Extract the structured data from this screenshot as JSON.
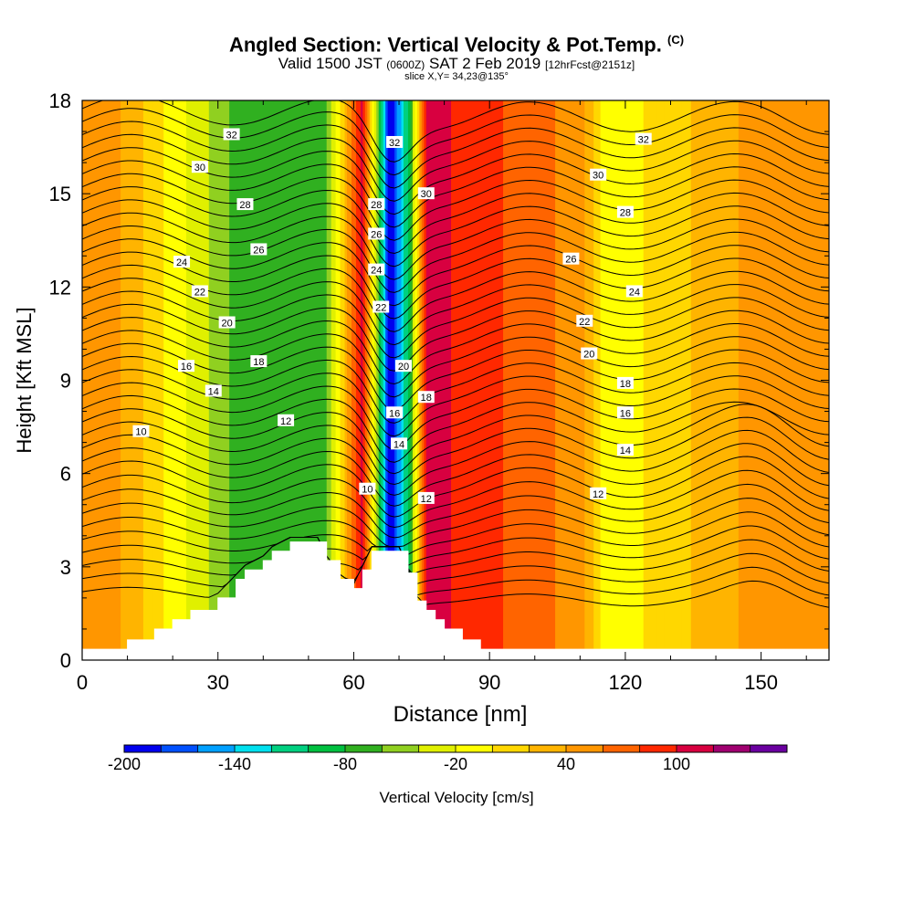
{
  "header": {
    "title_main": "Angled Section: Vertical Velocity & Pot.Temp.",
    "title_c": "(C)",
    "valid_a": "Valid 1500 JST",
    "valid_b": "(0600Z)",
    "valid_c": "SAT 2 Feb 2019",
    "valid_d": "[12hrFcst@2151z]",
    "slice": "slice X,Y= 34,23@135°"
  },
  "colorbar": {
    "title": "Vertical Velocity [cm/s]",
    "tick_labels": [
      "-200",
      "-140",
      "-80",
      "-20",
      "40",
      "100"
    ],
    "tick_values": [
      -200,
      -140,
      -80,
      -20,
      40,
      100
    ],
    "levels": [
      -200,
      -180,
      -160,
      -140,
      -120,
      -100,
      -80,
      -60,
      -40,
      -20,
      0,
      20,
      40,
      60,
      80,
      100,
      120,
      140
    ],
    "colors": [
      "#0000ee",
      "#0050ff",
      "#00a0ff",
      "#00e0ee",
      "#00d080",
      "#00c040",
      "#30b020",
      "#90d020",
      "#e0f000",
      "#ffff00",
      "#ffd700",
      "#ffb400",
      "#ff9600",
      "#ff6400",
      "#ff2800",
      "#d80040",
      "#a00070",
      "#6a00a0"
    ]
  },
  "chart_data": {
    "type": "heatmap",
    "title": "Angled Section: Vertical Velocity & Pot.Temp.",
    "xlabel": "Distance [nm]",
    "ylabel": "Height [Kft MSL]",
    "xlim": [
      0,
      165
    ],
    "ylim": [
      0,
      18
    ],
    "xticks": [
      0,
      30,
      60,
      90,
      120,
      150
    ],
    "yticks": [
      0,
      3,
      6,
      9,
      12,
      15,
      18
    ],
    "grid": false,
    "terrain": {
      "x": [
        0,
        10,
        16,
        20,
        24,
        30,
        34,
        36,
        40,
        42,
        46,
        52,
        54,
        57,
        60,
        62,
        64,
        70,
        72,
        74,
        76,
        78,
        80,
        84,
        88,
        90,
        165
      ],
      "height": [
        0.35,
        0.65,
        1.0,
        1.3,
        1.6,
        2.0,
        2.6,
        2.9,
        3.2,
        3.5,
        3.8,
        3.8,
        3.2,
        2.6,
        2.3,
        2.9,
        3.5,
        3.5,
        2.8,
        1.9,
        1.6,
        1.3,
        1.0,
        0.65,
        0.35,
        0.35,
        0.35
      ]
    },
    "vertical_velocity_cm_s": [
      {
        "x": 6,
        "value": 50
      },
      {
        "x": 35,
        "value": -70
      },
      {
        "x": 54,
        "value": -60
      },
      {
        "x": 62,
        "value": 110
      },
      {
        "x": 68,
        "value": -200
      },
      {
        "x": 72,
        "value": -100
      },
      {
        "x": 76,
        "value": 110
      },
      {
        "x": 110,
        "value": 50
      },
      {
        "x": 116,
        "value": -15
      },
      {
        "x": 150,
        "value": 50
      }
    ],
    "potential_temperature_contour_labels_C": [
      "10",
      "12",
      "14",
      "16",
      "18",
      "20",
      "22",
      "24",
      "26",
      "28",
      "30",
      "32"
    ],
    "contour_label_positions": [
      {
        "label": "32",
        "x": 33,
        "y": 16.9
      },
      {
        "label": "30",
        "x": 26,
        "y": 15.85
      },
      {
        "label": "28",
        "x": 36,
        "y": 14.65
      },
      {
        "label": "26",
        "x": 39,
        "y": 13.2
      },
      {
        "label": "24",
        "x": 22,
        "y": 12.8
      },
      {
        "label": "22",
        "x": 26,
        "y": 11.85
      },
      {
        "label": "20",
        "x": 32,
        "y": 10.85
      },
      {
        "label": "18",
        "x": 39,
        "y": 9.6
      },
      {
        "label": "16",
        "x": 23,
        "y": 9.45
      },
      {
        "label": "14",
        "x": 29,
        "y": 8.65
      },
      {
        "label": "12",
        "x": 45,
        "y": 7.7
      },
      {
        "label": "10",
        "x": 13,
        "y": 7.35
      },
      {
        "label": "32",
        "x": 69,
        "y": 16.65
      },
      {
        "label": "30",
        "x": 76,
        "y": 15.0
      },
      {
        "label": "28",
        "x": 65,
        "y": 14.65
      },
      {
        "label": "26",
        "x": 65,
        "y": 13.7
      },
      {
        "label": "24",
        "x": 65,
        "y": 12.55
      },
      {
        "label": "22",
        "x": 66,
        "y": 11.35
      },
      {
        "label": "20",
        "x": 71,
        "y": 9.45
      },
      {
        "label": "18",
        "x": 76,
        "y": 8.45
      },
      {
        "label": "16",
        "x": 69,
        "y": 7.95
      },
      {
        "label": "14",
        "x": 70,
        "y": 6.95
      },
      {
        "label": "10",
        "x": 63,
        "y": 5.5
      },
      {
        "label": "12",
        "x": 76,
        "y": 5.2
      },
      {
        "label": "32",
        "x": 124,
        "y": 16.75
      },
      {
        "label": "30",
        "x": 114,
        "y": 15.6
      },
      {
        "label": "28",
        "x": 120,
        "y": 14.4
      },
      {
        "label": "26",
        "x": 108,
        "y": 12.9
      },
      {
        "label": "24",
        "x": 122,
        "y": 11.85
      },
      {
        "label": "22",
        "x": 111,
        "y": 10.9
      },
      {
        "label": "20",
        "x": 112,
        "y": 9.85
      },
      {
        "label": "18",
        "x": 120,
        "y": 8.9
      },
      {
        "label": "16",
        "x": 120,
        "y": 7.95
      },
      {
        "label": "14",
        "x": 120,
        "y": 6.75
      },
      {
        "label": "12",
        "x": 114,
        "y": 5.35
      }
    ]
  }
}
